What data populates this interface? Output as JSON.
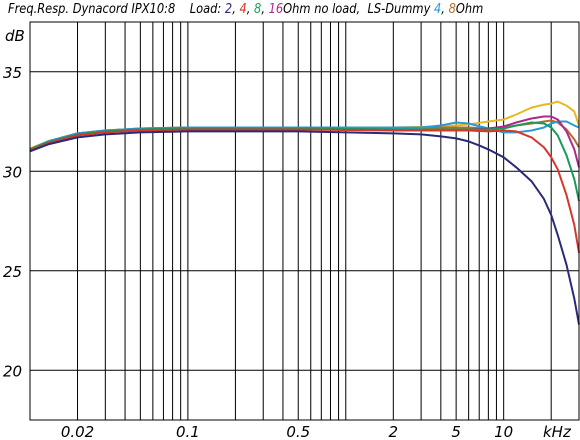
{
  "header": {
    "prefix": "Freq.Resp. Dynacord IPX10:8",
    "load_label": "Load:",
    "load_values": [
      {
        "text": "2",
        "color": "#2a2a7a"
      },
      {
        "text": "4",
        "color": "#d9362b"
      },
      {
        "text": "8",
        "color": "#1a9a5a"
      },
      {
        "text": "16",
        "color": "#b0288a"
      }
    ],
    "ohm_text": "Ohm no load,",
    "dummy_label": "LS-Dummy",
    "dummy_values": [
      {
        "text": "4",
        "color": "#2a9ad6"
      },
      {
        "text": "8",
        "color": "#b9692a"
      }
    ],
    "dummy_ohm_text": "Ohm"
  },
  "chart_data": {
    "type": "line",
    "title": "",
    "xlabel": "kHz",
    "ylabel": "dB",
    "xscale": "log",
    "xlim": [
      0.01,
      30
    ],
    "ylim": [
      17.5,
      37.5
    ],
    "xticks": [
      {
        "value": 0.02,
        "label": "0.02"
      },
      {
        "value": 0.1,
        "label": "0.1"
      },
      {
        "value": 0.5,
        "label": "0.5"
      },
      {
        "value": 2,
        "label": "2"
      },
      {
        "value": 5,
        "label": "5"
      },
      {
        "value": 10,
        "label": "10"
      }
    ],
    "yticks": [
      {
        "value": 20,
        "label": "20"
      },
      {
        "value": 25,
        "label": "25"
      },
      {
        "value": 30,
        "label": "30"
      },
      {
        "value": 35,
        "label": "35"
      }
    ],
    "grid": true,
    "series": [
      {
        "name": "no load",
        "color": "#e8b820",
        "x": [
          0.01,
          0.013,
          0.02,
          0.03,
          0.05,
          0.1,
          0.5,
          2,
          4,
          6,
          8,
          10,
          12,
          15,
          18,
          20,
          22,
          25,
          28,
          30
        ],
        "y": [
          31.15,
          31.5,
          31.9,
          32.05,
          32.15,
          32.2,
          32.2,
          32.2,
          32.25,
          32.35,
          32.5,
          32.6,
          32.85,
          33.2,
          33.35,
          33.4,
          33.5,
          33.3,
          33.0,
          32.3
        ]
      },
      {
        "name": "LS-Dummy 8",
        "color": "#b9692a",
        "x": [
          0.01,
          0.013,
          0.02,
          0.03,
          0.05,
          0.1,
          0.5,
          2,
          4,
          6,
          8,
          10,
          12,
          15,
          18,
          20,
          22,
          25,
          28,
          30
        ],
        "y": [
          31.1,
          31.5,
          31.9,
          32.05,
          32.15,
          32.2,
          32.2,
          32.2,
          32.2,
          32.2,
          32.15,
          32.2,
          32.3,
          32.4,
          32.5,
          32.55,
          32.45,
          32.1,
          31.6,
          31.2
        ]
      },
      {
        "name": "LS-Dummy 4",
        "color": "#2a9ad6",
        "x": [
          0.01,
          0.013,
          0.02,
          0.03,
          0.05,
          0.1,
          0.5,
          2,
          3,
          4,
          5,
          6,
          8,
          10,
          12,
          15,
          18,
          20,
          22,
          25,
          28,
          30
        ],
        "y": [
          31.1,
          31.5,
          31.9,
          32.05,
          32.15,
          32.2,
          32.2,
          32.2,
          32.2,
          32.3,
          32.45,
          32.4,
          32.15,
          31.95,
          31.95,
          32.05,
          32.2,
          32.4,
          32.5,
          32.5,
          32.3,
          32.2
        ]
      },
      {
        "name": "16",
        "color": "#b0288a",
        "x": [
          0.01,
          0.013,
          0.02,
          0.03,
          0.05,
          0.1,
          0.5,
          2,
          4,
          6,
          8,
          10,
          12,
          15,
          18,
          20,
          22,
          25,
          28,
          30
        ],
        "y": [
          31.1,
          31.45,
          31.85,
          32.0,
          32.1,
          32.15,
          32.15,
          32.1,
          32.1,
          32.1,
          32.15,
          32.25,
          32.45,
          32.65,
          32.75,
          32.75,
          32.6,
          32.0,
          31.1,
          30.2
        ]
      },
      {
        "name": "8",
        "color": "#1a9a5a",
        "x": [
          0.01,
          0.013,
          0.02,
          0.03,
          0.05,
          0.1,
          0.5,
          2,
          4,
          6,
          8,
          10,
          12,
          15,
          18,
          20,
          22,
          25,
          28,
          30
        ],
        "y": [
          31.1,
          31.45,
          31.85,
          32.0,
          32.1,
          32.15,
          32.15,
          32.1,
          32.1,
          32.1,
          32.1,
          32.15,
          32.3,
          32.45,
          32.4,
          32.2,
          31.8,
          30.8,
          29.6,
          28.5
        ]
      },
      {
        "name": "4",
        "color": "#d9362b",
        "x": [
          0.01,
          0.013,
          0.02,
          0.03,
          0.05,
          0.1,
          0.5,
          2,
          4,
          6,
          8,
          10,
          12,
          15,
          18,
          20,
          22,
          25,
          28,
          30
        ],
        "y": [
          31.05,
          31.4,
          31.8,
          31.95,
          32.05,
          32.1,
          32.1,
          32.05,
          32.05,
          32.05,
          32.0,
          32.05,
          32.0,
          31.7,
          31.2,
          30.7,
          30.1,
          28.8,
          27.3,
          25.9
        ]
      },
      {
        "name": "2",
        "color": "#2a2a7a",
        "x": [
          0.01,
          0.013,
          0.02,
          0.03,
          0.05,
          0.1,
          0.5,
          2,
          3,
          4,
          5,
          6,
          7,
          8,
          10,
          12,
          15,
          18,
          20,
          22,
          25,
          28,
          30
        ],
        "y": [
          31.0,
          31.35,
          31.7,
          31.85,
          31.95,
          32.0,
          32.0,
          31.9,
          31.85,
          31.75,
          31.65,
          31.5,
          31.3,
          31.1,
          30.7,
          30.2,
          29.5,
          28.6,
          27.8,
          26.8,
          25.3,
          23.6,
          22.3
        ]
      }
    ]
  }
}
